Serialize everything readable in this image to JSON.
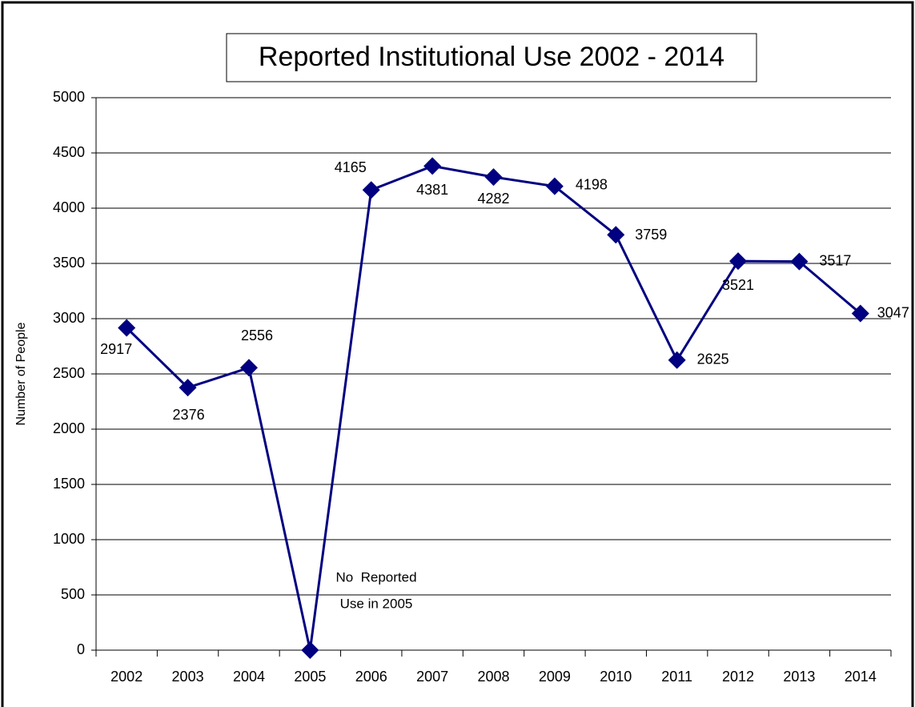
{
  "chart_data": {
    "type": "line",
    "title": "Reported Institutional Use 2002 - 2014",
    "y_label": "Number of People",
    "categories": [
      "2002",
      "2003",
      "2004",
      "2005",
      "2006",
      "2007",
      "2008",
      "2009",
      "2010",
      "2011",
      "2012",
      "2013",
      "2014"
    ],
    "values": [
      2917,
      2376,
      2556,
      0,
      4165,
      4381,
      4282,
      4198,
      3759,
      2625,
      3521,
      3517,
      3047
    ],
    "value_labels": [
      "2917",
      "2376",
      "2556",
      null,
      "4165",
      "4381",
      "4282",
      "4198",
      "3759",
      "2625",
      "3521",
      "3517",
      "3047"
    ],
    "color": "#000080",
    "ylim": [
      0,
      5000
    ],
    "yticks": [
      0,
      500,
      1000,
      1500,
      2000,
      2500,
      3000,
      3500,
      4000,
      4500,
      5000
    ],
    "grid": true,
    "annotation_lines": [
      "No  Reported",
      "Use in 2005"
    ]
  }
}
